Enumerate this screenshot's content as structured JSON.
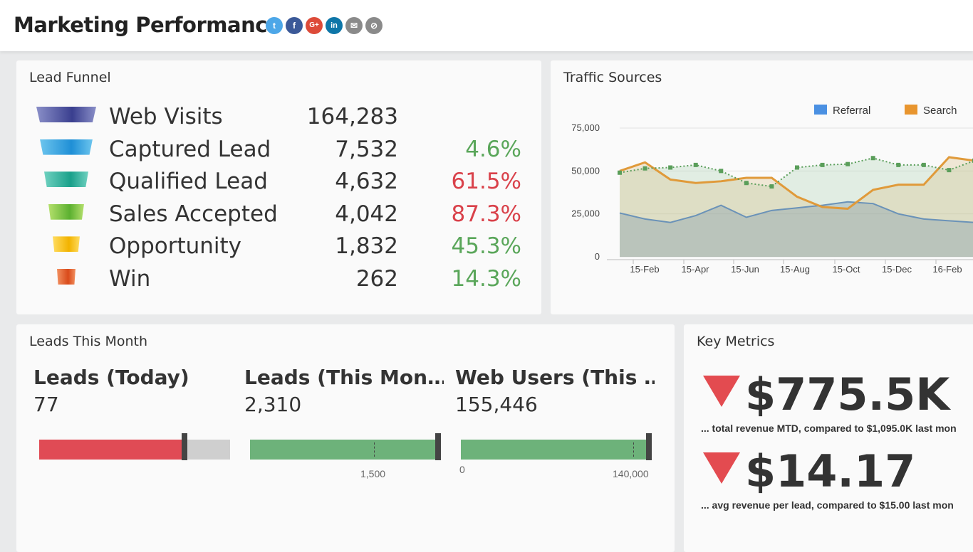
{
  "header": {
    "title": "Marketing Performance"
  },
  "social_icons": [
    "twitter-icon",
    "facebook-icon",
    "google-plus-icon",
    "linkedin-icon",
    "email-icon",
    "link-icon"
  ],
  "lead_funnel": {
    "title": "Lead Funnel",
    "rows": [
      {
        "label": "Web Visits",
        "value": "164,283",
        "pct": "",
        "pct_color": "#5aa65a",
        "icon_color": "#3a3f8f",
        "icon_color2": "#8a8fc8"
      },
      {
        "label": "Captured Lead",
        "value": "7,532",
        "pct": "4.6%",
        "pct_color": "#5aa65a",
        "icon_color": "#1f8fd6",
        "icon_color2": "#6cc5ee"
      },
      {
        "label": "Qualified Lead",
        "value": "4,632",
        "pct": "61.5%",
        "pct_color": "#d9414a",
        "icon_color": "#1aa08a",
        "icon_color2": "#6fd1c0"
      },
      {
        "label": "Sales Accepted",
        "value": "4,042",
        "pct": "87.3%",
        "pct_color": "#d9414a",
        "icon_color": "#5cb030",
        "icon_color2": "#b4e06c"
      },
      {
        "label": "Opportunity",
        "value": "1,832",
        "pct": "45.3%",
        "pct_color": "#5aa65a",
        "icon_color": "#f2b300",
        "icon_color2": "#ffdc60"
      },
      {
        "label": "Win",
        "value": "262",
        "pct": "14.3%",
        "pct_color": "#5aa65a",
        "icon_color": "#d94a1a",
        "icon_color2": "#f29060"
      }
    ]
  },
  "traffic": {
    "title": "Traffic Sources",
    "legend": [
      {
        "name": "Referral",
        "color": "#4a90e2"
      },
      {
        "name": "Search",
        "color": "#e8952e"
      }
    ]
  },
  "chart_data": {
    "type": "area",
    "title": "Traffic Sources",
    "ylim": [
      0,
      75000
    ],
    "yticks": [
      0,
      25000,
      50000,
      75000
    ],
    "ytick_labels": [
      "0",
      "25,000",
      "50,000",
      "75,000"
    ],
    "x_tick_labels": [
      "15-Feb",
      "15-Apr",
      "15-Jun",
      "15-Aug",
      "15-Oct",
      "15-Dec",
      "16-Feb"
    ],
    "legend_position": "top-right",
    "series": [
      {
        "name": "Referral",
        "color": "#6a92b8",
        "values": [
          25500,
          22000,
          20000,
          24000,
          30000,
          23000,
          27000,
          28500,
          30000,
          32000,
          31000,
          25000,
          22000,
          21000,
          20000
        ]
      },
      {
        "name": "Search",
        "color": "#e09a3a",
        "values": [
          50000,
          55000,
          45000,
          43000,
          44000,
          46000,
          46000,
          35000,
          29000,
          28000,
          39000,
          42000,
          42000,
          58000,
          56000
        ]
      },
      {
        "name": "",
        "color": "#5a9e5a",
        "values": [
          49000,
          51500,
          52000,
          53500,
          50000,
          43000,
          41000,
          52000,
          53500,
          54000,
          57500,
          53500,
          53500,
          50500,
          56000
        ]
      }
    ]
  },
  "leads_month": {
    "title": "Leads This Month",
    "kpis": [
      {
        "label": "Leads (Today)",
        "value": "77",
        "fill_fraction": 0.76,
        "fill_color": "#e04b55",
        "scale_labels": []
      },
      {
        "label": "Leads (This Mon…",
        "value": "2,310",
        "fill_fraction": 1.0,
        "fill_color": "#6db27a",
        "scale_labels": [
          "1,500"
        ]
      },
      {
        "label": "Web Users (This …",
        "value": "155,446",
        "fill_fraction": 1.0,
        "fill_color": "#6db27a",
        "scale_labels": [
          "0",
          "140,000"
        ]
      }
    ]
  },
  "key_metrics": {
    "title": "Key Metrics",
    "items": [
      {
        "value": "$775.5K",
        "caption": "... total revenue MTD, compared to $1,095.0K last mon",
        "trend": "down"
      },
      {
        "value": "$14.17",
        "caption": "... avg revenue per lead, compared to $15.00 last mon",
        "trend": "down"
      }
    ]
  }
}
